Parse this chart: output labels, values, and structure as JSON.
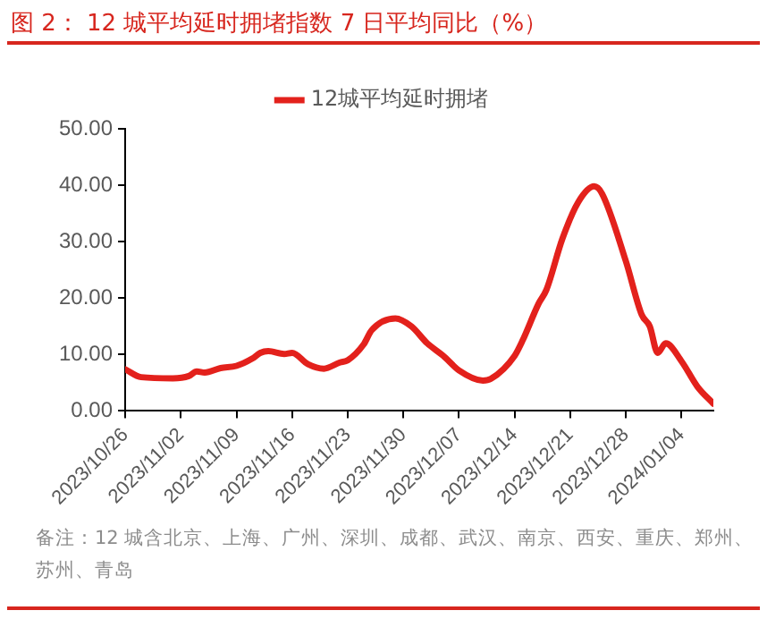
{
  "chart_data": {
    "type": "line",
    "title": "图 2： 12 城平均延时拥堵指数 7 日平均同比（%）",
    "annotations": [
      "备注：12 城含北京、上海、广州、深圳、成都、武汉、南京、西安、重庆、郑州、苏州、青岛"
    ],
    "x": [
      "2023-10-26",
      "2023-10-28",
      "2023-11-01",
      "2023-11-03",
      "2023-11-04",
      "2023-11-05",
      "2023-11-07",
      "2023-11-09",
      "2023-11-11",
      "2023-11-12",
      "2023-11-13",
      "2023-11-15",
      "2023-11-16",
      "2023-11-18",
      "2023-11-20",
      "2023-11-22",
      "2023-11-23",
      "2023-11-25",
      "2023-11-26",
      "2023-11-29",
      "2023-12-01",
      "2023-12-03",
      "2023-12-05",
      "2023-12-07",
      "2023-12-10",
      "2023-12-11",
      "2023-12-14",
      "2023-12-15",
      "2023-12-17",
      "2023-12-18",
      "2023-12-20",
      "2023-12-22",
      "2023-12-24",
      "2023-12-25",
      "2023-12-28",
      "2023-12-30",
      "2023-12-31",
      "2024-01-01",
      "2024-01-02",
      "2024-01-04",
      "2024-01-06",
      "2024-01-08"
    ],
    "series": [
      {
        "name": "12城平均延时拥堵",
        "color": "#e3211c",
        "values": [
          7.4,
          6.0,
          5.8,
          6.2,
          7.0,
          6.8,
          7.6,
          8.0,
          9.3,
          10.3,
          10.6,
          10.1,
          10.3,
          8.3,
          7.5,
          8.6,
          9.0,
          11.8,
          14.3,
          16.4,
          15.0,
          12.0,
          9.8,
          7.2,
          5.4,
          5.7,
          9.8,
          12.5,
          19.0,
          21.5,
          30.5,
          37.0,
          39.8,
          38.5,
          26.5,
          17.0,
          15.0,
          10.3,
          12.0,
          8.8,
          4.3,
          1.3
        ]
      }
    ],
    "xlim": [
      "2023-10-26",
      "2024-01-08"
    ],
    "xticks": [
      {
        "value": "2023-10-26",
        "label": "2023/10/26"
      },
      {
        "value": "2023-11-02",
        "label": "2023/11/02"
      },
      {
        "value": "2023-11-09",
        "label": "2023/11/09"
      },
      {
        "value": "2023-11-16",
        "label": "2023/11/16"
      },
      {
        "value": "2023-11-23",
        "label": "2023/11/23"
      },
      {
        "value": "2023-11-30",
        "label": "2023/11/30"
      },
      {
        "value": "2023-12-07",
        "label": "2023/12/07"
      },
      {
        "value": "2023-12-14",
        "label": "2023/12/14"
      },
      {
        "value": "2023-12-21",
        "label": "2023/12/21"
      },
      {
        "value": "2023-12-28",
        "label": "2023/12/28"
      },
      {
        "value": "2024-01-04",
        "label": "2024/01/04"
      }
    ],
    "ylim": [
      0,
      50
    ],
    "yticks": [
      {
        "value": 0,
        "label": "0.00"
      },
      {
        "value": 10,
        "label": "10.00"
      },
      {
        "value": 20,
        "label": "20.00"
      },
      {
        "value": 30,
        "label": "30.00"
      },
      {
        "value": 40,
        "label": "40.00"
      },
      {
        "value": 50,
        "label": "50.00"
      }
    ],
    "legend": "top",
    "marker": "none",
    "line_style": "solid"
  }
}
